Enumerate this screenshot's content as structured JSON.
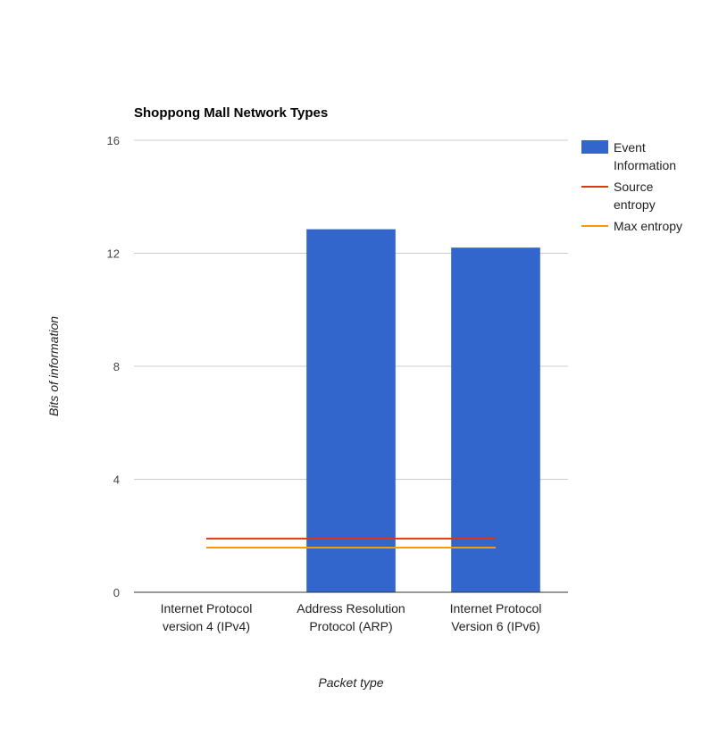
{
  "chart_data": {
    "type": "bar",
    "title": "Shoppong Mall Network Types",
    "xlabel": "Packet type",
    "ylabel": "Bits of information",
    "categories": [
      [
        "Internet Protocol",
        "version 4 (IPv4)"
      ],
      [
        "Address Resolution",
        "Protocol (ARP)"
      ],
      [
        "Internet Protocol",
        "Version 6 (IPv6)"
      ]
    ],
    "ylim": [
      0,
      16
    ],
    "yticks": [
      "0",
      "4",
      "8",
      "12",
      "16"
    ],
    "grid": true,
    "legend_position": "right",
    "series": [
      {
        "name": "Event Information",
        "legend_lines": [
          "Event",
          "Information"
        ],
        "kind": "bar",
        "color": "#3366cc",
        "values": [
          0,
          12.85,
          12.2
        ]
      },
      {
        "name": "Source entropy",
        "legend_lines": [
          "Source",
          "entropy"
        ],
        "kind": "line",
        "color": "#dc3912",
        "values": [
          1.9,
          1.9,
          1.9
        ]
      },
      {
        "name": "Max entropy",
        "legend_lines": [
          "Max entropy"
        ],
        "kind": "line",
        "color": "#ff9900",
        "values": [
          1.58,
          1.58,
          1.58
        ]
      }
    ]
  }
}
